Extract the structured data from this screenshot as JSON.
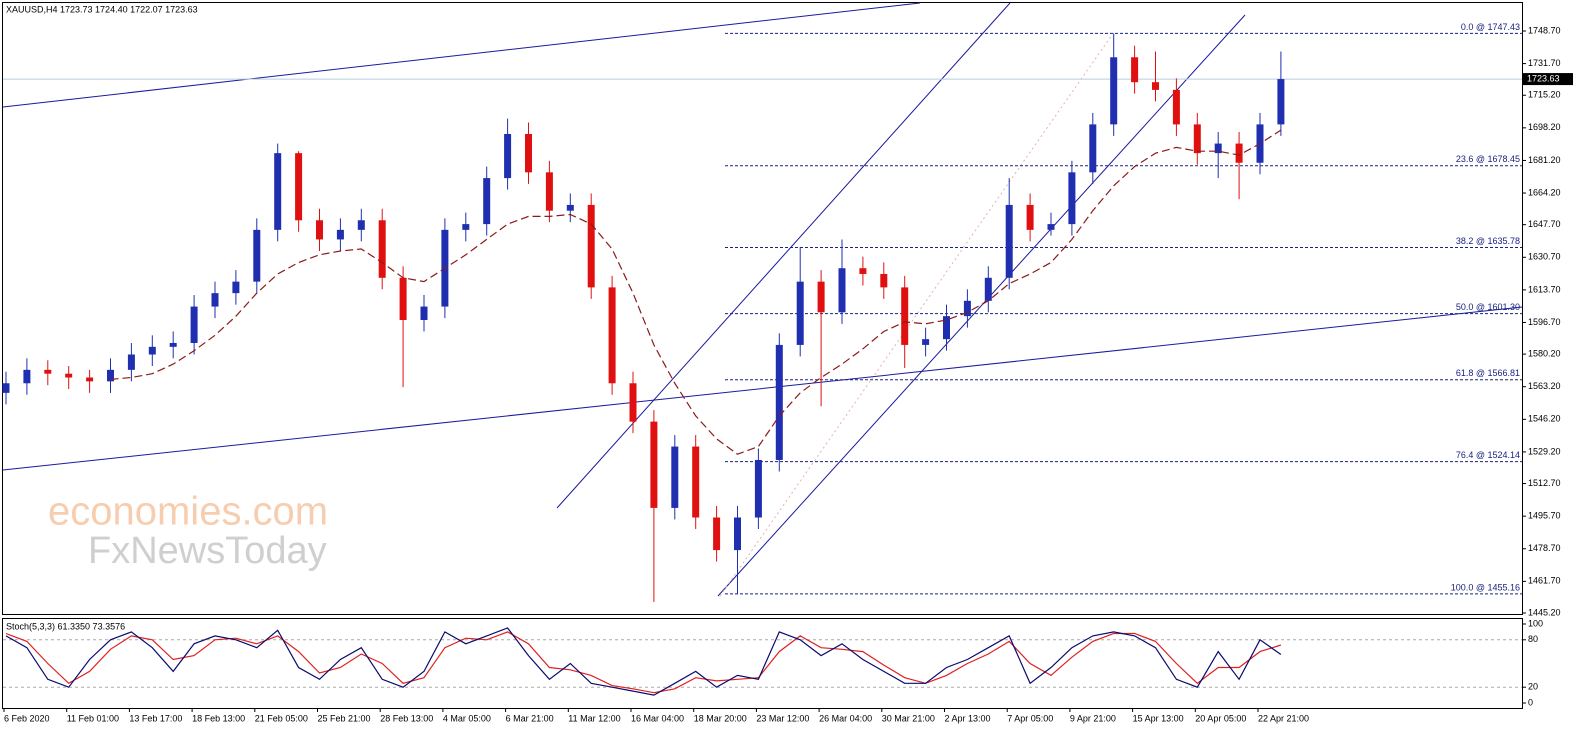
{
  "chart_data": {
    "type": "candlestick",
    "title": "XAUUSD,H4  1723.73 1724.40 1722.07 1723.63",
    "categories": [
      "6 Feb 2020",
      null,
      null,
      "11 Feb 01:00",
      null,
      null,
      "13 Feb 17:00",
      null,
      null,
      "18 Feb 13:00",
      null,
      null,
      "21 Feb 05:00",
      null,
      null,
      "25 Feb 21:00",
      null,
      null,
      "28 Feb 13:00",
      null,
      null,
      "4 Mar 05:00",
      null,
      null,
      "6 Mar 21:00",
      null,
      null,
      "11 Mar 12:00",
      null,
      null,
      "16 Mar 04:00",
      null,
      null,
      "18 Mar 20:00",
      null,
      null,
      "23 Mar 12:00",
      null,
      null,
      "26 Mar 04:00",
      null,
      null,
      "30 Mar 21:00",
      null,
      null,
      "2 Apr 13:00",
      null,
      null,
      "7 Apr 05:00",
      null,
      null,
      "9 Apr 21:00",
      null,
      null,
      "15 Apr 13:00",
      null,
      null,
      "20 Apr 05:00",
      null,
      null,
      "22 Apr 21:00",
      null
    ],
    "open": [
      1560,
      1565,
      1572,
      1570,
      1568,
      1566,
      1572,
      1580,
      1584,
      1586,
      1605,
      1612,
      1618,
      1645,
      1685,
      1650,
      1640,
      1645,
      1650,
      1620,
      1598,
      1605,
      1645,
      1648,
      1672,
      1695,
      1675,
      1655,
      1658,
      1615,
      1565,
      1545,
      1500,
      1532,
      1495,
      1478,
      1495,
      1525,
      1585,
      1618,
      1602,
      1625,
      1622,
      1615,
      1585,
      1588,
      1600,
      1608,
      1620,
      1658,
      1645,
      1648,
      1675,
      1700,
      1735,
      1722,
      1718,
      1700,
      1685,
      1690,
      1680,
      1700
    ],
    "high": [
      1571,
      1578,
      1577,
      1574,
      1572,
      1578,
      1586,
      1590,
      1592,
      1611,
      1618,
      1624,
      1651,
      1690,
      1686,
      1656,
      1651,
      1656,
      1656,
      1626,
      1611,
      1651,
      1654,
      1678,
      1703,
      1701,
      1681,
      1664,
      1664,
      1621,
      1571,
      1551,
      1538,
      1538,
      1501,
      1501,
      1531,
      1591,
      1636,
      1624,
      1640,
      1631,
      1628,
      1621,
      1594,
      1606,
      1614,
      1626,
      1672,
      1664,
      1654,
      1681,
      1706,
      1747.43,
      1741,
      1738,
      1724,
      1706,
      1696,
      1696,
      1706,
      1738
    ],
    "low": [
      1554,
      1559,
      1564,
      1562,
      1560,
      1560,
      1566,
      1574,
      1578,
      1580,
      1599,
      1606,
      1612,
      1639,
      1644,
      1634,
      1634,
      1639,
      1614,
      1563,
      1592,
      1599,
      1639,
      1642,
      1666,
      1669,
      1649,
      1649,
      1609,
      1559,
      1539,
      1451,
      1494,
      1489,
      1472,
      1455.16,
      1489,
      1519,
      1579,
      1553,
      1596,
      1616,
      1609,
      1573,
      1579,
      1582,
      1594,
      1602,
      1614,
      1639,
      1642,
      1642,
      1669,
      1694,
      1716,
      1712,
      1694,
      1679,
      1672,
      1661,
      1674,
      1694
    ],
    "close": [
      1565,
      1572,
      1570,
      1568,
      1566,
      1572,
      1580,
      1584,
      1586,
      1605,
      1612,
      1618,
      1645,
      1685,
      1650,
      1640,
      1645,
      1650,
      1620,
      1598,
      1605,
      1645,
      1648,
      1672,
      1695,
      1675,
      1655,
      1658,
      1615,
      1565,
      1545,
      1500,
      1532,
      1495,
      1478,
      1495,
      1525,
      1585,
      1618,
      1602,
      1625,
      1622,
      1615,
      1585,
      1588,
      1600,
      1608,
      1620,
      1658,
      1645,
      1648,
      1675,
      1700,
      1735,
      1722,
      1718,
      1700,
      1685,
      1690,
      1680,
      1700,
      1723.63
    ],
    "up_color": "#1f2fb0",
    "down_color": "#e01010",
    "moving_average": {
      "color": "#8b1a1a",
      "values": [
        null,
        null,
        null,
        null,
        null,
        1567,
        1568,
        1570,
        1575,
        1582,
        1590,
        1600,
        1612,
        1622,
        1628,
        1632,
        1634,
        1635,
        1628,
        1620,
        1618,
        1625,
        1632,
        1640,
        1648,
        1652,
        1652,
        1653,
        1648,
        1635,
        1612,
        1585,
        1565,
        1548,
        1536,
        1528,
        1532,
        1548,
        1560,
        1568,
        1575,
        1583,
        1592,
        1597,
        1596,
        1598,
        1602,
        1608,
        1617,
        1622,
        1628,
        1640,
        1655,
        1668,
        1678,
        1685,
        1688,
        1686,
        1686,
        1684,
        1690,
        1697
      ]
    },
    "ylim": [
      1445.2,
      1748.7
    ],
    "yticks": [
      {
        "value": 1748.7,
        "label": "1748.70"
      },
      {
        "value": 1731.7,
        "label": "1731.70"
      },
      {
        "value": 1715.2,
        "label": "1715.20"
      },
      {
        "value": 1698.2,
        "label": "1698.20"
      },
      {
        "value": 1681.2,
        "label": "1681.20"
      },
      {
        "value": 1664.2,
        "label": "1664.20"
      },
      {
        "value": 1647.7,
        "label": "1647.70"
      },
      {
        "value": 1630.7,
        "label": "1630.70"
      },
      {
        "value": 1613.7,
        "label": "1613.70"
      },
      {
        "value": 1596.7,
        "label": "1596.70"
      },
      {
        "value": 1580.2,
        "label": "1580.20"
      },
      {
        "value": 1563.2,
        "label": "1563.20"
      },
      {
        "value": 1546.2,
        "label": "1546.20"
      },
      {
        "value": 1529.2,
        "label": "1529.20"
      },
      {
        "value": 1512.7,
        "label": "1512.70"
      },
      {
        "value": 1495.7,
        "label": "1495.70"
      },
      {
        "value": 1478.7,
        "label": "1478.70"
      },
      {
        "value": 1461.7,
        "label": "1461.70"
      },
      {
        "value": 1445.2,
        "label": "1445.20"
      }
    ],
    "fib_levels": [
      {
        "value": 1747.43,
        "label": "0.0 @ 1747.43"
      },
      {
        "value": 1678.45,
        "label": "23.6 @ 1678.45"
      },
      {
        "value": 1635.78,
        "label": "38.2 @ 1635.78"
      },
      {
        "value": 1601.3,
        "label": "50.0 @ 1601.30"
      },
      {
        "value": 1566.81,
        "label": "61.8 @ 1566.81"
      },
      {
        "value": 1524.14,
        "label": "76.4 @ 1524.14"
      },
      {
        "value": 1455.16,
        "label": "100.0 @ 1455.16"
      }
    ],
    "fib_color": "#1a237e",
    "last_price": {
      "value": 1723.63,
      "label": "1723.63"
    },
    "watermark": [
      "economies.com",
      "FxNewsToday"
    ],
    "indicator": {
      "title": "Stoch(5,3,3) 61.3350 73.3576",
      "ylim": [
        0,
        100
      ],
      "yticks": [
        0,
        20,
        80,
        100
      ],
      "levels": [
        20,
        80
      ],
      "main": {
        "color": "#0a0a6e",
        "values": [
          85,
          70,
          30,
          20,
          55,
          80,
          90,
          70,
          40,
          75,
          85,
          80,
          70,
          92,
          45,
          30,
          55,
          70,
          30,
          20,
          40,
          90,
          75,
          85,
          95,
          60,
          30,
          50,
          25,
          20,
          15,
          10,
          25,
          40,
          20,
          35,
          30,
          90,
          80,
          60,
          75,
          55,
          40,
          25,
          25,
          45,
          55,
          70,
          85,
          25,
          45,
          70,
          85,
          90,
          85,
          70,
          30,
          20,
          65,
          30,
          80,
          61.335
        ]
      },
      "signal": {
        "color": "#e02020",
        "values": [
          88,
          78,
          50,
          25,
          40,
          68,
          85,
          80,
          55,
          60,
          80,
          82,
          75,
          85,
          65,
          38,
          45,
          62,
          50,
          25,
          32,
          70,
          82,
          80,
          90,
          75,
          45,
          42,
          35,
          22,
          18,
          13,
          18,
          32,
          28,
          30,
          32,
          65,
          85,
          70,
          68,
          65,
          48,
          32,
          25,
          35,
          50,
          62,
          78,
          50,
          35,
          58,
          78,
          88,
          88,
          78,
          50,
          25,
          45,
          45,
          65,
          73.3576
        ]
      }
    }
  }
}
